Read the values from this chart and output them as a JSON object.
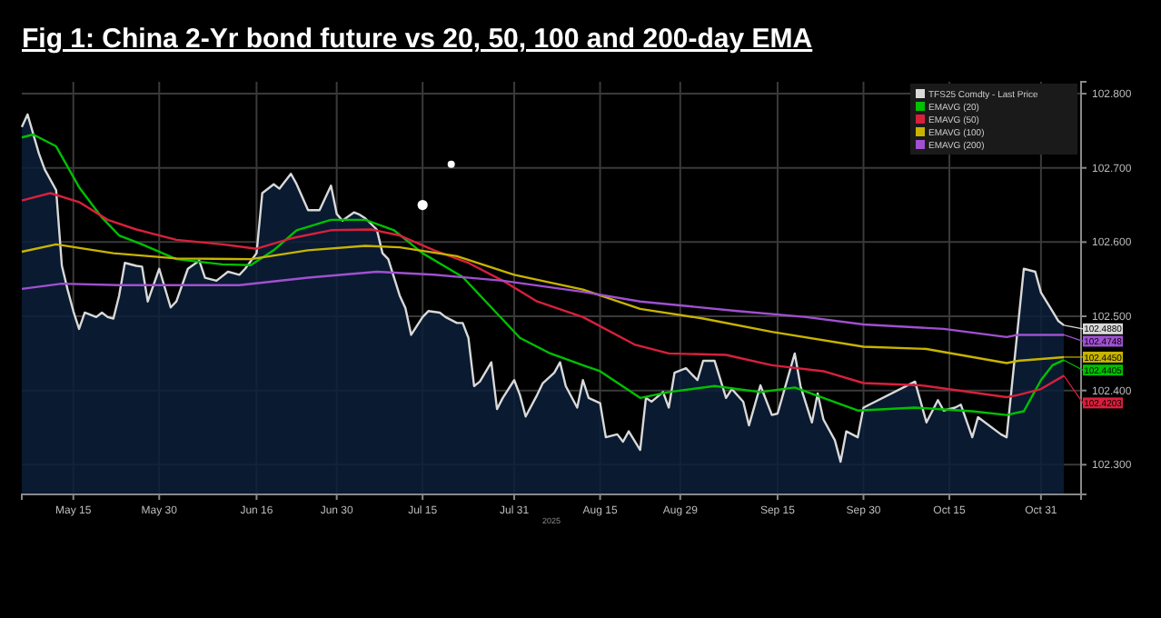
{
  "chart_data": {
    "type": "line",
    "title": "Fig 1:  China 2-Yr bond future vs 20, 50, 100 and 200-day EMA",
    "xlabel": "2025",
    "xlim": [
      "2025-05-06",
      "2025-11-07"
    ],
    "ylim": [
      102.26,
      102.816
    ],
    "xticks": [
      {
        "value": "2025-05-15",
        "label": "May 15"
      },
      {
        "value": "2025-05-30",
        "label": "May 30"
      },
      {
        "value": "2025-06-16",
        "label": "Jun 16"
      },
      {
        "value": "2025-06-30",
        "label": "Jun 30"
      },
      {
        "value": "2025-07-15",
        "label": "Jul 15"
      },
      {
        "value": "2025-07-31",
        "label": "Jul 31"
      },
      {
        "value": "2025-08-15",
        "label": "Aug 15"
      },
      {
        "value": "2025-08-29",
        "label": "Aug 29"
      },
      {
        "value": "2025-09-15",
        "label": "Sep 15"
      },
      {
        "value": "2025-09-30",
        "label": "Sep 30"
      },
      {
        "value": "2025-10-15",
        "label": "Oct 15"
      },
      {
        "value": "2025-10-31",
        "label": "Oct 31"
      }
    ],
    "yticks": [
      {
        "value": 102.3,
        "label": "102.300"
      },
      {
        "value": 102.4,
        "label": "102.400"
      },
      {
        "value": 102.5,
        "label": "102.500"
      },
      {
        "value": 102.6,
        "label": "102.600"
      },
      {
        "value": 102.7,
        "label": "102.700"
      },
      {
        "value": 102.8,
        "label": "102.800"
      }
    ],
    "grid": true,
    "legend": "top right",
    "series": [
      {
        "name": "TFS25 Comdty - Last Price",
        "type": "area",
        "color": "#d9d9d9",
        "x": [
          "2025-05-06",
          "2025-05-07",
          "2025-05-09",
          "2025-05-10",
          "2025-05-12",
          "2025-05-13",
          "2025-05-14",
          "2025-05-15",
          "2025-05-16",
          "2025-05-17",
          "2025-05-19",
          "2025-05-20",
          "2025-05-21",
          "2025-05-22",
          "2025-05-23",
          "2025-05-24",
          "2025-05-26",
          "2025-05-27",
          "2025-05-28",
          "2025-05-30",
          "2025-06-01",
          "2025-06-02",
          "2025-06-04",
          "2025-06-06",
          "2025-06-07",
          "2025-06-09",
          "2025-06-11",
          "2025-06-13",
          "2025-06-14",
          "2025-06-16",
          "2025-06-17",
          "2025-06-19",
          "2025-06-20",
          "2025-06-22",
          "2025-06-23",
          "2025-06-25",
          "2025-06-27",
          "2025-06-29",
          "2025-06-30",
          "2025-07-01",
          "2025-07-03",
          "2025-07-04",
          "2025-07-05",
          "2025-07-07",
          "2025-07-08",
          "2025-07-09",
          "2025-07-11",
          "2025-07-12",
          "2025-07-13",
          "2025-07-15",
          "2025-07-16",
          "2025-07-18",
          "2025-07-19",
          "2025-07-21",
          "2025-07-22",
          "2025-07-23",
          "2025-07-24",
          "2025-07-25",
          "2025-07-27",
          "2025-07-28",
          "2025-07-29",
          "2025-07-31",
          "2025-08-01",
          "2025-08-02",
          "2025-08-04",
          "2025-08-05",
          "2025-08-07",
          "2025-08-08",
          "2025-08-09",
          "2025-08-11",
          "2025-08-12",
          "2025-08-13",
          "2025-08-15",
          "2025-08-16",
          "2025-08-18",
          "2025-08-19",
          "2025-08-20",
          "2025-08-22",
          "2025-08-23",
          "2025-08-24",
          "2025-08-26",
          "2025-08-27",
          "2025-08-28",
          "2025-08-30",
          "2025-09-01",
          "2025-09-02",
          "2025-09-04",
          "2025-09-06",
          "2025-09-07",
          "2025-09-09",
          "2025-09-10",
          "2025-09-12",
          "2025-09-14",
          "2025-09-15",
          "2025-09-18",
          "2025-09-19",
          "2025-09-21",
          "2025-09-22",
          "2025-09-23",
          "2025-09-25",
          "2025-09-26",
          "2025-09-27",
          "2025-09-29",
          "2025-09-30",
          "2025-10-09",
          "2025-10-11",
          "2025-10-13",
          "2025-10-14",
          "2025-10-16",
          "2025-10-17",
          "2025-10-19",
          "2025-10-20",
          "2025-10-24",
          "2025-10-25",
          "2025-10-28",
          "2025-10-30",
          "2025-10-31",
          "2025-11-02",
          "2025-11-03",
          "2025-11-04"
        ],
        "values": [
          102.755,
          102.772,
          102.719,
          102.698,
          102.67,
          102.568,
          102.536,
          102.507,
          102.483,
          102.505,
          102.499,
          102.505,
          102.499,
          102.497,
          102.528,
          102.572,
          102.568,
          102.567,
          102.52,
          102.564,
          102.512,
          102.52,
          102.564,
          102.575,
          102.552,
          102.548,
          102.56,
          102.556,
          102.564,
          102.585,
          102.666,
          102.678,
          102.672,
          102.692,
          102.678,
          102.643,
          102.643,
          102.676,
          102.638,
          102.629,
          102.64,
          102.637,
          102.632,
          102.617,
          102.585,
          102.577,
          102.528,
          102.511,
          102.475,
          102.499,
          102.507,
          102.505,
          102.499,
          102.491,
          102.491,
          102.471,
          102.406,
          102.412,
          102.438,
          102.375,
          102.39,
          102.414,
          102.394,
          102.365,
          102.394,
          102.41,
          102.424,
          102.438,
          102.406,
          102.377,
          102.414,
          102.39,
          102.383,
          102.337,
          102.341,
          102.331,
          102.345,
          102.32,
          102.39,
          102.385,
          102.398,
          102.377,
          102.424,
          102.43,
          102.414,
          102.44,
          102.44,
          102.39,
          102.402,
          102.385,
          102.353,
          102.407,
          102.367,
          102.369,
          102.45,
          102.406,
          102.357,
          102.396,
          102.361,
          102.333,
          102.304,
          102.345,
          102.337,
          102.377,
          102.412,
          102.357,
          102.387,
          102.373,
          102.377,
          102.381,
          102.337,
          102.364,
          102.341,
          102.337,
          102.564,
          102.56,
          102.532,
          102.507,
          102.494,
          102.488
        ]
      },
      {
        "name": "EMAVG (20)",
        "color": "#00c000",
        "x": [
          "2025-05-06",
          "2025-05-08",
          "2025-05-12",
          "2025-05-16",
          "2025-05-20",
          "2025-05-23",
          "2025-05-27",
          "2025-06-02",
          "2025-06-10",
          "2025-06-15",
          "2025-06-19",
          "2025-06-23",
          "2025-06-29",
          "2025-07-05",
          "2025-07-10",
          "2025-07-15",
          "2025-07-22",
          "2025-07-27",
          "2025-08-01",
          "2025-08-06",
          "2025-08-12",
          "2025-08-15",
          "2025-08-22",
          "2025-08-27",
          "2025-09-04",
          "2025-09-12",
          "2025-09-18",
          "2025-09-29",
          "2025-10-09",
          "2025-10-19",
          "2025-10-25",
          "2025-10-28",
          "2025-10-31",
          "2025-11-02",
          "2025-11-04"
        ],
        "values": [
          102.741,
          102.745,
          102.729,
          102.674,
          102.633,
          102.609,
          102.597,
          102.577,
          102.57,
          102.569,
          102.589,
          102.616,
          102.63,
          102.63,
          102.616,
          102.585,
          102.553,
          102.512,
          102.471,
          102.451,
          102.434,
          102.426,
          102.39,
          102.398,
          102.406,
          102.398,
          102.404,
          102.373,
          102.377,
          102.372,
          102.367,
          102.372,
          102.414,
          102.434,
          102.441
        ]
      },
      {
        "name": "EMAVG (50)",
        "color": "#d8203c",
        "x": [
          "2025-05-06",
          "2025-05-11",
          "2025-05-16",
          "2025-05-21",
          "2025-05-26",
          "2025-06-02",
          "2025-06-10",
          "2025-06-16",
          "2025-06-22",
          "2025-06-29",
          "2025-07-06",
          "2025-07-11",
          "2025-07-17",
          "2025-07-23",
          "2025-07-29",
          "2025-08-04",
          "2025-08-12",
          "2025-08-21",
          "2025-08-27",
          "2025-09-06",
          "2025-09-14",
          "2025-09-23",
          "2025-09-30",
          "2025-10-10",
          "2025-10-25",
          "2025-10-27",
          "2025-10-31",
          "2025-11-04"
        ],
        "values": [
          102.656,
          102.666,
          102.654,
          102.63,
          102.617,
          102.603,
          102.597,
          102.591,
          102.605,
          102.616,
          102.617,
          102.609,
          102.589,
          102.572,
          102.548,
          102.52,
          102.499,
          102.462,
          102.45,
          102.448,
          102.434,
          102.426,
          102.41,
          102.407,
          102.391,
          102.394,
          102.402,
          102.42
        ]
      },
      {
        "name": "EMAVG (100)",
        "color": "#c8b400",
        "x": [
          "2025-05-06",
          "2025-05-12",
          "2025-05-22",
          "2025-06-02",
          "2025-06-15",
          "2025-06-25",
          "2025-07-05",
          "2025-07-11",
          "2025-07-21",
          "2025-07-31",
          "2025-08-12",
          "2025-08-22",
          "2025-09-02",
          "2025-09-14",
          "2025-09-30",
          "2025-10-11",
          "2025-10-25",
          "2025-10-27",
          "2025-11-04"
        ],
        "values": [
          102.587,
          102.597,
          102.585,
          102.578,
          102.577,
          102.589,
          102.595,
          102.593,
          102.581,
          102.556,
          102.536,
          102.51,
          102.497,
          102.479,
          102.459,
          102.456,
          102.437,
          102.44,
          102.445
        ]
      },
      {
        "name": "EMAVG (200)",
        "color": "#a050d0",
        "x": [
          "2025-05-06",
          "2025-05-13",
          "2025-05-23",
          "2025-06-13",
          "2025-06-25",
          "2025-07-07",
          "2025-07-17",
          "2025-07-29",
          "2025-08-12",
          "2025-08-22",
          "2025-09-08",
          "2025-09-20",
          "2025-09-30",
          "2025-10-14",
          "2025-10-25",
          "2025-10-27",
          "2025-11-04"
        ],
        "values": [
          102.537,
          102.544,
          102.542,
          102.542,
          102.552,
          102.56,
          102.556,
          102.548,
          102.533,
          102.52,
          102.507,
          102.499,
          102.489,
          102.483,
          102.472,
          102.475,
          102.475
        ]
      },
      {
        "type": "scatter",
        "color": "#ffffff",
        "x": [
          "2025-07-15",
          "2025-07-20"
        ],
        "values": [
          102.65,
          102.705
        ]
      }
    ],
    "annotations": [
      {
        "text": "102.4880",
        "x": "2025-11-04",
        "y": 102.488
      },
      {
        "text": "102.4405",
        "x": "2025-11-04",
        "y": 102.441
      },
      {
        "text": "102.4203",
        "x": "2025-11-04",
        "y": 102.42
      },
      {
        "text": "102.4450",
        "x": "2025-11-04",
        "y": 102.445
      },
      {
        "text": "102.4748",
        "x": "2025-11-04",
        "y": 102.475
      }
    ]
  }
}
